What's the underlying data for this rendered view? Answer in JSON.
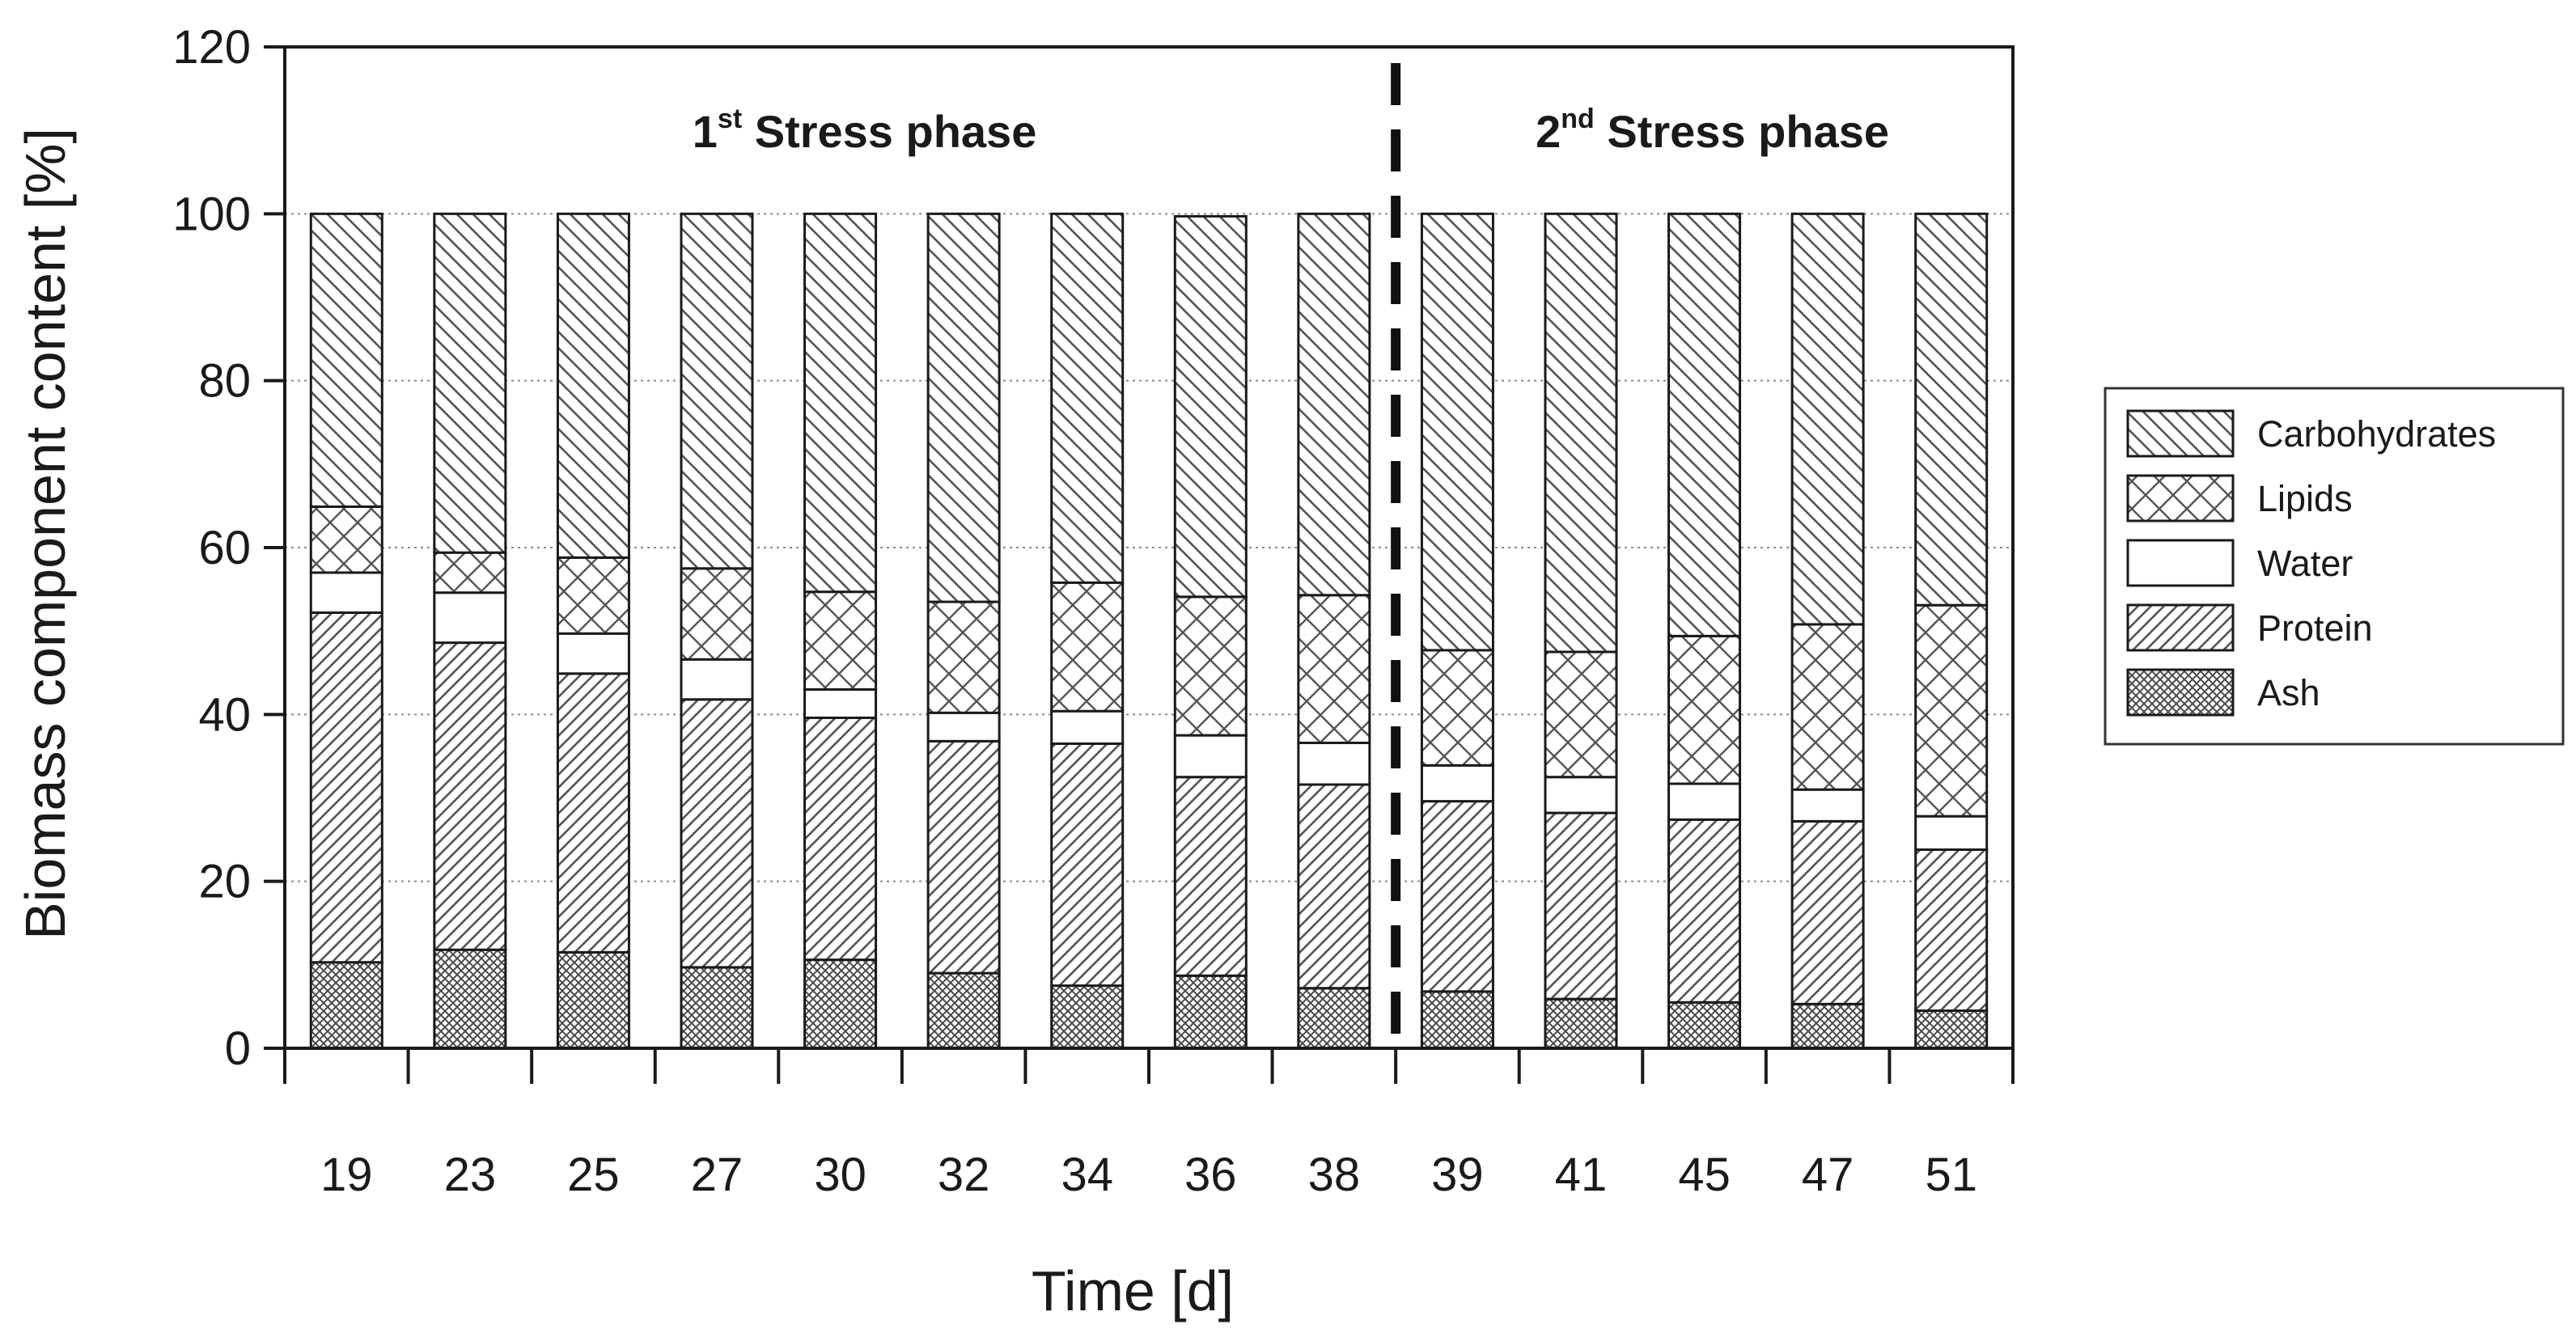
{
  "chart_data": {
    "type": "bar",
    "stacked": true,
    "title": "",
    "xlabel": "Time [d]",
    "ylabel": "Biomass component content [%]",
    "ylim": [
      0,
      120
    ],
    "yticks": [
      0,
      20,
      40,
      60,
      80,
      100,
      120
    ],
    "grid": "horizontal dotted",
    "legend_position": "right",
    "categories": [
      "19",
      "23",
      "25",
      "27",
      "30",
      "32",
      "34",
      "36",
      "38",
      "39",
      "41",
      "45",
      "47",
      "51"
    ],
    "series": [
      {
        "name": "Ash",
        "pattern": "cross-hatch",
        "values": [
          10.3,
          11.8,
          11.5,
          9.7,
          10.6,
          9.0,
          7.5,
          8.7,
          7.2,
          6.8,
          5.9,
          5.5,
          5.3,
          4.5
        ]
      },
      {
        "name": "Protein",
        "pattern": "diagonal-up",
        "values": [
          41.9,
          36.8,
          33.4,
          32.1,
          29.0,
          27.8,
          29.0,
          23.8,
          24.4,
          22.8,
          22.3,
          21.9,
          21.9,
          19.3
        ]
      },
      {
        "name": "Water",
        "pattern": "blank",
        "values": [
          4.8,
          6.0,
          4.8,
          4.8,
          3.4,
          3.4,
          3.9,
          5.0,
          5.0,
          4.3,
          4.3,
          4.3,
          3.8,
          4.0
        ]
      },
      {
        "name": "Lipids",
        "pattern": "crosshatch-wide",
        "values": [
          7.9,
          4.8,
          9.1,
          10.9,
          11.7,
          13.3,
          15.4,
          16.6,
          17.7,
          13.8,
          15.0,
          17.7,
          19.8,
          25.3
        ]
      },
      {
        "name": "Carbohydrates",
        "pattern": "diagonal-down",
        "values": [
          35.1,
          40.6,
          41.2,
          42.5,
          45.3,
          46.5,
          44.2,
          45.6,
          45.7,
          52.3,
          52.5,
          50.6,
          49.2,
          46.9
        ]
      }
    ],
    "legend_order": [
      "Carbohydrates",
      "Lipids",
      "Water",
      "Protein",
      "Ash"
    ],
    "phase_divider_after": "38",
    "phases": [
      {
        "main": "1",
        "sup": "st",
        "rest": " Stress phase"
      },
      {
        "main": "2",
        "sup": "nd",
        "rest": " Stress phase"
      }
    ]
  }
}
